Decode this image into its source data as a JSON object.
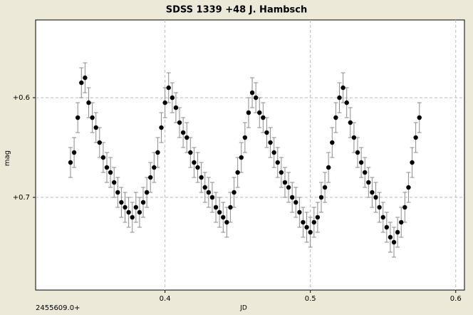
{
  "chart_data": {
    "type": "scatter",
    "title": "SDSS 1339 +48 J. Hambsch",
    "x_label": "JD",
    "y_label": "mag",
    "annotation": "2455609.0+",
    "xlim": [
      0.311,
      0.606
    ],
    "ylim": [
      0.793,
      0.522
    ],
    "xticks": [
      0.4,
      0.5,
      0.6
    ],
    "yticks": [
      {
        "value": 0.6,
        "label": "+0.6"
      },
      {
        "value": 0.7,
        "label": "+0.7"
      }
    ],
    "grid": true,
    "color": "#000000",
    "error_color": "#8c8c8c",
    "yerr": 0.015,
    "x": [
      0.335,
      0.3375,
      0.34,
      0.3425,
      0.345,
      0.3475,
      0.35,
      0.3525,
      0.355,
      0.3575,
      0.36,
      0.3625,
      0.365,
      0.3675,
      0.37,
      0.3725,
      0.375,
      0.3775,
      0.38,
      0.3825,
      0.385,
      0.3875,
      0.39,
      0.3925,
      0.395,
      0.3975,
      0.4,
      0.4025,
      0.405,
      0.4075,
      0.41,
      0.4125,
      0.415,
      0.4175,
      0.42,
      0.4225,
      0.425,
      0.4275,
      0.43,
      0.4325,
      0.435,
      0.4375,
      0.44,
      0.4425,
      0.445,
      0.4475,
      0.45,
      0.4525,
      0.455,
      0.4575,
      0.46,
      0.4625,
      0.465,
      0.4675,
      0.47,
      0.4725,
      0.475,
      0.4775,
      0.48,
      0.4825,
      0.485,
      0.4875,
      0.49,
      0.4925,
      0.495,
      0.4975,
      0.5,
      0.5025,
      0.505,
      0.5075,
      0.51,
      0.5125,
      0.515,
      0.5175,
      0.52,
      0.5225,
      0.525,
      0.5275,
      0.53,
      0.5325,
      0.535,
      0.5375,
      0.54,
      0.5425,
      0.545,
      0.5475,
      0.55,
      0.5525,
      0.555,
      0.5575,
      0.56,
      0.5625,
      0.565,
      0.5675,
      0.57,
      0.5725,
      0.575
    ],
    "y": [
      0.665,
      0.655,
      0.62,
      0.585,
      0.58,
      0.605,
      0.62,
      0.63,
      0.645,
      0.66,
      0.67,
      0.675,
      0.685,
      0.695,
      0.705,
      0.71,
      0.715,
      0.72,
      0.71,
      0.715,
      0.705,
      0.695,
      0.68,
      0.67,
      0.655,
      0.63,
      0.605,
      0.59,
      0.6,
      0.61,
      0.625,
      0.635,
      0.64,
      0.655,
      0.665,
      0.67,
      0.68,
      0.69,
      0.695,
      0.7,
      0.71,
      0.715,
      0.72,
      0.725,
      0.71,
      0.695,
      0.675,
      0.66,
      0.64,
      0.615,
      0.595,
      0.6,
      0.615,
      0.62,
      0.635,
      0.645,
      0.655,
      0.665,
      0.675,
      0.685,
      0.69,
      0.7,
      0.705,
      0.715,
      0.725,
      0.73,
      0.735,
      0.725,
      0.72,
      0.7,
      0.69,
      0.67,
      0.645,
      0.62,
      0.6,
      0.59,
      0.605,
      0.625,
      0.64,
      0.655,
      0.665,
      0.675,
      0.685,
      0.695,
      0.7,
      0.71,
      0.72,
      0.73,
      0.74,
      0.745,
      0.735,
      0.725,
      0.71,
      0.69,
      0.665,
      0.64,
      0.62
    ]
  }
}
